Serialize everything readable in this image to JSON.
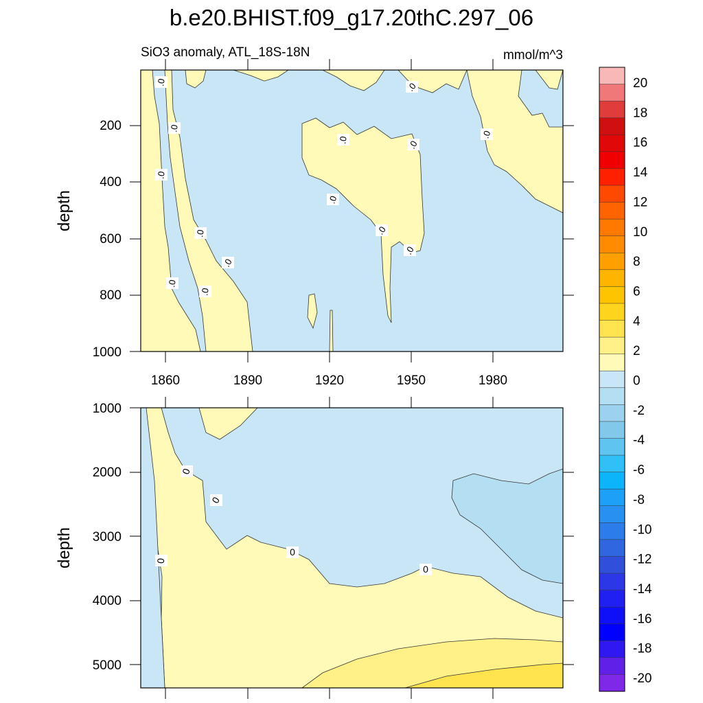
{
  "title": "b.e20.BHIST.f09_g17.20thC.297_06",
  "chart_data": {
    "type": "contour",
    "subtitle": "SiO3 anomaly, ATL_18S-18N",
    "units": "mmol/m^3",
    "ylabel": "depth",
    "x_ticks": [
      1860,
      1890,
      1920,
      1950,
      1980
    ],
    "xlim": [
      1850,
      2005
    ],
    "panels": [
      {
        "name": "upper",
        "ylim": [
          1000,
          0
        ],
        "y_ticks": [
          200,
          400,
          600,
          800,
          1000
        ],
        "contour_labels": [
          ".0",
          ".0",
          ".0",
          ".0",
          ".0",
          ".0",
          ".0",
          ".0",
          ".0",
          ".0",
          ".0",
          ".0",
          ".0",
          ".0"
        ]
      },
      {
        "name": "lower",
        "ylim": [
          5350,
          1000
        ],
        "y_ticks": [
          1000,
          2000,
          3000,
          4000,
          5000
        ],
        "contour_labels": [
          "0",
          "0",
          "0",
          "0",
          "0"
        ]
      }
    ],
    "colorbar": {
      "labels": [
        "20",
        "18",
        "16",
        "14",
        "12",
        "10",
        "8",
        "6",
        "4",
        "2",
        "0",
        "-2",
        "-4",
        "-6",
        "-8",
        "-10",
        "-12",
        "-14",
        "-16",
        "-18",
        "-20"
      ],
      "colors": [
        "#f8b8b8",
        "#f07878",
        "#e03c3c",
        "#d01010",
        "#e00808",
        "#f00000",
        "#ff2000",
        "#ff4800",
        "#ff6400",
        "#ff7800",
        "#ff8c00",
        "#ffa000",
        "#ffb400",
        "#ffc400",
        "#ffd41c",
        "#ffe450",
        "#fff088",
        "#fffab8",
        "#c8e6f5",
        "#b4def2",
        "#9cd2ee",
        "#82c8ea",
        "#60c4f0",
        "#30c0f8",
        "#0cb4fa",
        "#1ca0f8",
        "#2890f0",
        "#2c7cea",
        "#3066e0",
        "#3050dc",
        "#2c38e8",
        "#2020f0",
        "#1010f8",
        "#0000ff",
        "#3018f0",
        "#6020e8",
        "#8028e8"
      ]
    }
  }
}
